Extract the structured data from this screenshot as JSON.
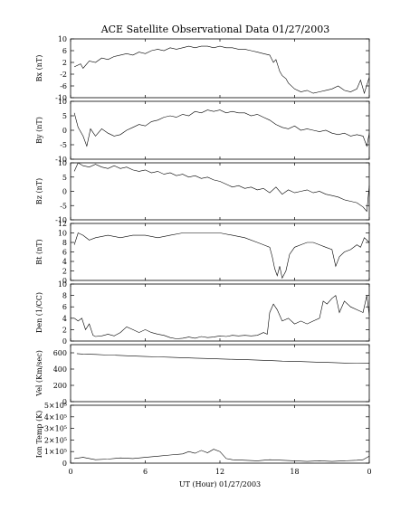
{
  "chart_data": {
    "type": "line",
    "title": "ACE Satellite Observational Data   01/27/2003",
    "xlabel": "UT (Hour)  01/27/2003",
    "x_ticks": [
      "0",
      "6",
      "12",
      "18",
      "0"
    ],
    "xlim": [
      0,
      24
    ],
    "panels": [
      {
        "name": "bx",
        "ylabel": "Bx (nT)",
        "ylim": [
          -10,
          10
        ],
        "y_ticks": [
          "10",
          "6",
          "2",
          "-2",
          "-6",
          "-10"
        ],
        "y_tick_values": [
          10,
          6,
          2,
          -2,
          -6,
          -10
        ],
        "x": [
          0.3,
          0.8,
          1.0,
          1.5,
          2.0,
          2.5,
          3.0,
          3.5,
          4.0,
          4.5,
          5.0,
          5.5,
          6.0,
          6.5,
          7.0,
          7.5,
          8.0,
          8.5,
          9.0,
          9.5,
          10.0,
          10.5,
          11.0,
          11.5,
          12.0,
          12.5,
          13.0,
          13.5,
          14.0,
          14.5,
          15.0,
          15.5,
          16.0,
          16.3,
          16.5,
          16.8,
          17.0,
          17.3,
          17.5,
          18.0,
          18.5,
          19.0,
          19.5,
          20.0,
          20.5,
          21.0,
          21.5,
          22.0,
          22.5,
          23.0,
          23.3,
          23.6,
          24.0
        ],
        "y": [
          0.5,
          1.5,
          0.0,
          2.5,
          2.0,
          3.5,
          3.0,
          4.0,
          4.5,
          5.0,
          4.5,
          5.5,
          5.0,
          6.0,
          6.5,
          6.0,
          7.0,
          6.5,
          7.0,
          7.5,
          7.0,
          7.5,
          7.5,
          7.0,
          7.5,
          7.0,
          7.0,
          6.5,
          6.5,
          6.0,
          5.5,
          5.0,
          4.5,
          2.0,
          3.0,
          -1.0,
          -2.5,
          -3.5,
          -5.0,
          -7.0,
          -8.0,
          -7.5,
          -8.5,
          -8.0,
          -7.5,
          -7.0,
          -6.0,
          -7.5,
          -8.0,
          -7.0,
          -4.0,
          -8.5,
          -3.0
        ]
      },
      {
        "name": "by",
        "ylabel": "By (nT)",
        "ylim": [
          -10,
          10
        ],
        "y_ticks": [
          "10",
          "5",
          "0",
          "-5",
          "-10"
        ],
        "y_tick_values": [
          10,
          5,
          0,
          -5,
          -10
        ],
        "x": [
          0.3,
          0.6,
          1.0,
          1.3,
          1.6,
          2.0,
          2.5,
          3.0,
          3.5,
          4.0,
          4.5,
          5.0,
          5.5,
          6.0,
          6.5,
          7.0,
          7.5,
          8.0,
          8.5,
          9.0,
          9.5,
          10.0,
          10.5,
          11.0,
          11.5,
          12.0,
          12.5,
          13.0,
          13.5,
          14.0,
          14.5,
          15.0,
          15.5,
          16.0,
          16.5,
          17.0,
          17.5,
          18.0,
          18.5,
          19.0,
          19.5,
          20.0,
          20.5,
          21.0,
          21.5,
          22.0,
          22.5,
          23.0,
          23.5,
          23.8,
          24.0
        ],
        "y": [
          6.0,
          1.0,
          -2.0,
          -5.5,
          0.5,
          -2.0,
          0.5,
          -1.0,
          -2.0,
          -1.5,
          0.0,
          1.0,
          2.0,
          1.5,
          3.0,
          3.5,
          4.5,
          5.0,
          4.5,
          5.5,
          5.0,
          6.5,
          6.0,
          7.0,
          6.5,
          7.0,
          6.0,
          6.5,
          6.0,
          6.0,
          5.0,
          5.5,
          4.5,
          3.5,
          2.0,
          1.0,
          0.5,
          1.5,
          0.0,
          0.5,
          0.0,
          -0.5,
          0.0,
          -1.0,
          -1.5,
          -1.0,
          -2.0,
          -1.5,
          -2.0,
          -5.5,
          -1.0
        ]
      },
      {
        "name": "bz",
        "ylabel": "Bz (nT)",
        "ylim": [
          -10,
          10
        ],
        "y_ticks": [
          "10",
          "5",
          "0",
          "-5",
          "-10"
        ],
        "y_tick_values": [
          10,
          5,
          0,
          -5,
          -10
        ],
        "x": [
          0.3,
          0.6,
          1.0,
          1.5,
          2.0,
          2.5,
          3.0,
          3.5,
          4.0,
          4.5,
          5.0,
          5.5,
          6.0,
          6.5,
          7.0,
          7.5,
          8.0,
          8.5,
          9.0,
          9.5,
          10.0,
          10.5,
          11.0,
          11.5,
          12.0,
          12.5,
          13.0,
          13.5,
          14.0,
          14.5,
          15.0,
          15.5,
          16.0,
          16.5,
          17.0,
          17.5,
          18.0,
          18.5,
          19.0,
          19.5,
          20.0,
          20.5,
          21.0,
          21.5,
          22.0,
          22.5,
          23.0,
          23.5,
          23.8,
          24.0
        ],
        "y": [
          7.0,
          10.0,
          9.0,
          8.5,
          9.5,
          8.5,
          8.0,
          9.0,
          8.0,
          8.5,
          7.5,
          7.0,
          7.5,
          6.5,
          7.0,
          6.0,
          6.5,
          5.5,
          6.0,
          5.0,
          5.5,
          4.5,
          5.0,
          4.0,
          3.5,
          2.5,
          1.5,
          2.0,
          1.0,
          1.5,
          0.5,
          1.0,
          -0.5,
          1.5,
          -1.0,
          0.5,
          -0.5,
          0.0,
          0.5,
          -0.5,
          0.0,
          -1.0,
          -1.5,
          -2.0,
          -3.0,
          -3.5,
          -4.0,
          -5.5,
          -7.0,
          2.0
        ]
      },
      {
        "name": "bt",
        "ylabel": "Bt (nT)",
        "ylim": [
          0,
          12
        ],
        "y_ticks": [
          "12",
          "10",
          "8",
          "6",
          "4",
          "2",
          "0"
        ],
        "y_tick_values": [
          12,
          10,
          8,
          6,
          4,
          2,
          0
        ],
        "x": [
          0.3,
          0.6,
          1.0,
          1.5,
          2.0,
          3.0,
          4.0,
          5.0,
          6.0,
          7.0,
          8.0,
          9.0,
          10.0,
          11.0,
          12.0,
          13.0,
          14.0,
          15.0,
          15.5,
          16.0,
          16.2,
          16.4,
          16.6,
          16.8,
          17.0,
          17.3,
          17.6,
          18.0,
          18.5,
          19.0,
          19.5,
          20.0,
          20.5,
          21.0,
          21.3,
          21.6,
          22.0,
          22.5,
          23.0,
          23.3,
          23.6,
          24.0
        ],
        "y": [
          7.5,
          10.0,
          9.5,
          8.5,
          9.0,
          9.5,
          9.0,
          9.5,
          9.5,
          9.0,
          9.5,
          10.0,
          10.0,
          10.0,
          10.0,
          9.5,
          9.0,
          8.0,
          7.5,
          7.0,
          5.0,
          2.5,
          1.0,
          3.0,
          0.5,
          2.0,
          5.5,
          7.0,
          7.5,
          8.0,
          8.0,
          7.5,
          7.0,
          6.5,
          3.0,
          5.0,
          6.0,
          6.5,
          7.5,
          7.0,
          9.0,
          8.0
        ]
      },
      {
        "name": "den",
        "ylabel": "Den (1/CC)",
        "ylim": [
          0,
          10
        ],
        "y_ticks": [
          "10",
          "8",
          "6",
          "4",
          "2",
          "0"
        ],
        "y_tick_values": [
          10,
          8,
          6,
          4,
          2,
          0
        ],
        "x": [
          0.3,
          0.6,
          0.9,
          1.2,
          1.5,
          1.8,
          2.0,
          2.5,
          3.0,
          3.5,
          4.0,
          4.5,
          5.0,
          5.5,
          6.0,
          6.5,
          7.0,
          7.5,
          8.0,
          8.5,
          9.0,
          9.5,
          10.0,
          10.5,
          11.0,
          11.5,
          12.0,
          12.5,
          13.0,
          13.5,
          14.0,
          14.5,
          15.0,
          15.5,
          15.8,
          16.0,
          16.3,
          16.6,
          17.0,
          17.5,
          18.0,
          18.5,
          19.0,
          19.5,
          20.0,
          20.3,
          20.6,
          21.0,
          21.3,
          21.6,
          22.0,
          22.5,
          23.0,
          23.5,
          23.8,
          24.0
        ],
        "y": [
          4.0,
          3.5,
          4.0,
          2.0,
          3.0,
          1.0,
          0.8,
          0.9,
          1.2,
          0.9,
          1.5,
          2.5,
          2.0,
          1.5,
          2.0,
          1.5,
          1.2,
          1.0,
          0.6,
          0.4,
          0.5,
          0.7,
          0.5,
          0.8,
          0.6,
          0.7,
          0.9,
          0.8,
          1.0,
          0.9,
          1.0,
          0.9,
          1.0,
          1.5,
          1.2,
          5.0,
          6.5,
          5.5,
          3.5,
          4.0,
          3.0,
          3.5,
          3.0,
          3.5,
          4.0,
          7.0,
          6.5,
          7.5,
          8.0,
          5.0,
          7.0,
          6.0,
          5.5,
          5.0,
          8.0,
          4.5
        ]
      },
      {
        "name": "vel",
        "ylabel": "Vel (Km/sec)",
        "ylim": [
          0,
          700
        ],
        "y_ticks": [
          "600",
          "400",
          "200",
          "0"
        ],
        "y_tick_values": [
          600,
          400,
          200,
          0
        ],
        "x": [
          0.5,
          1.0,
          2.0,
          3.0,
          4.0,
          5.0,
          6.0,
          7.0,
          8.0,
          9.0,
          10.0,
          11.0,
          12.0,
          13.0,
          14.0,
          15.0,
          16.0,
          17.0,
          18.0,
          19.0,
          20.0,
          21.0,
          22.0,
          23.0,
          24.0
        ],
        "y": [
          590,
          585,
          580,
          572,
          568,
          560,
          555,
          550,
          545,
          540,
          535,
          530,
          525,
          520,
          515,
          510,
          505,
          498,
          495,
          490,
          485,
          480,
          475,
          472,
          470
        ]
      },
      {
        "name": "temp",
        "ylabel": "Ion Temp (K)",
        "ylim": [
          0,
          500000
        ],
        "y_ticks": [
          "5×10⁵",
          "4×10⁵",
          "3×10⁵",
          "2×10⁵",
          "1×10⁵",
          "0"
        ],
        "y_tick_values": [
          500000,
          400000,
          300000,
          200000,
          100000,
          0
        ],
        "x": [
          0.3,
          1.0,
          2.0,
          3.0,
          4.0,
          5.0,
          6.0,
          7.0,
          8.0,
          9.0,
          9.5,
          10.0,
          10.5,
          11.0,
          11.5,
          12.0,
          12.5,
          13.0,
          14.0,
          15.0,
          16.0,
          17.0,
          18.0,
          19.0,
          20.0,
          21.0,
          22.0,
          23.0,
          23.5,
          24.0
        ],
        "y": [
          40000,
          50000,
          30000,
          35000,
          45000,
          40000,
          50000,
          60000,
          70000,
          80000,
          100000,
          85000,
          110000,
          90000,
          120000,
          100000,
          40000,
          30000,
          25000,
          20000,
          30000,
          25000,
          20000,
          15000,
          20000,
          15000,
          20000,
          25000,
          30000,
          60000
        ]
      }
    ]
  }
}
